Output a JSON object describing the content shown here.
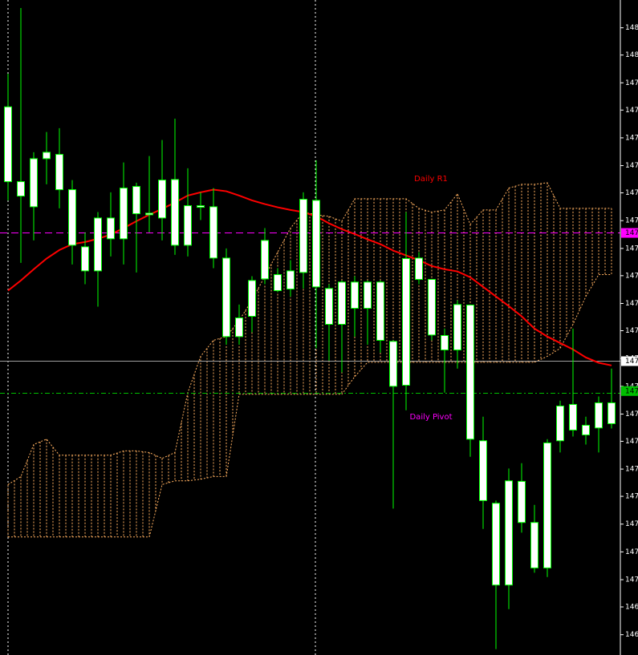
{
  "chart_data": {
    "type": "candlestick",
    "background": "#000000",
    "candle_color": "#ffffff",
    "wick_color": "#00ff00",
    "ylim": [
      146.894,
      148.12
    ],
    "yticks": [
      {
        "value": 148.068,
        "label": "148."
      },
      {
        "value": 148.017,
        "label": "148."
      },
      {
        "value": 147.965,
        "label": "147."
      },
      {
        "value": 147.914,
        "label": "147."
      },
      {
        "value": 147.862,
        "label": "147."
      },
      {
        "value": 147.81,
        "label": "147."
      },
      {
        "value": 147.759,
        "label": "147."
      },
      {
        "value": 147.707,
        "label": "147."
      },
      {
        "value": 147.655,
        "label": "147."
      },
      {
        "value": 147.604,
        "label": "147."
      },
      {
        "value": 147.552,
        "label": "147."
      },
      {
        "value": 147.501,
        "label": "147."
      },
      {
        "value": 147.449,
        "label": "147."
      },
      {
        "value": 147.397,
        "label": "147."
      },
      {
        "value": 147.345,
        "label": "147."
      },
      {
        "value": 147.294,
        "label": "147."
      },
      {
        "value": 147.242,
        "label": "147."
      },
      {
        "value": 147.191,
        "label": "147."
      },
      {
        "value": 147.139,
        "label": "147."
      },
      {
        "value": 147.087,
        "label": "147."
      },
      {
        "value": 147.035,
        "label": "147."
      },
      {
        "value": 146.984,
        "label": "146."
      },
      {
        "value": 146.932,
        "label": "146."
      }
    ],
    "open": [
      147.92,
      147.78,
      147.733,
      147.823,
      147.831,
      147.765,
      147.658,
      147.613,
      147.673,
      147.673,
      147.72,
      147.721,
      147.712,
      147.784,
      147.661,
      147.735,
      147.733,
      147.637,
      147.49,
      147.528,
      147.598,
      147.606,
      147.579,
      147.61,
      147.745,
      147.58,
      147.513,
      147.592,
      147.543,
      147.592,
      147.481,
      147.399,
      147.637,
      147.597,
      147.492,
      147.465,
      147.549,
      147.295,
      147.178,
      147.025,
      147.219,
      147.142,
      147.057,
      147.295,
      147.363,
      147.306,
      147.319,
      147.366
    ],
    "high": [
      147.982,
      148.105,
      147.835,
      147.873,
      147.88,
      147.783,
      147.685,
      147.723,
      147.76,
      147.816,
      147.778,
      147.828,
      147.858,
      147.898,
      147.805,
      147.76,
      147.768,
      147.655,
      147.55,
      147.603,
      147.693,
      147.618,
      147.633,
      147.76,
      147.82,
      147.588,
      147.595,
      147.603,
      147.595,
      147.595,
      147.483,
      147.723,
      147.648,
      147.598,
      147.505,
      147.558,
      147.55,
      147.34,
      147.183,
      147.243,
      147.253,
      147.175,
      147.298,
      147.37,
      147.505,
      147.34,
      147.378,
      147.43
    ],
    "low": [
      147.745,
      147.628,
      147.67,
      147.775,
      147.73,
      147.625,
      147.588,
      147.546,
      147.64,
      147.625,
      147.61,
      147.685,
      147.67,
      147.643,
      147.64,
      147.708,
      147.618,
      147.475,
      147.475,
      147.498,
      147.588,
      147.573,
      147.565,
      147.58,
      147.468,
      147.445,
      147.423,
      147.49,
      147.475,
      147.46,
      147.168,
      147.352,
      147.588,
      147.483,
      147.385,
      147.43,
      147.265,
      147.13,
      146.905,
      146.98,
      147.123,
      147.048,
      147.04,
      147.273,
      147.303,
      147.288,
      147.273,
      147.318
    ],
    "close": [
      147.78,
      147.753,
      147.823,
      147.835,
      147.765,
      147.661,
      147.613,
      147.712,
      147.712,
      147.768,
      147.771,
      147.718,
      147.783,
      147.661,
      147.735,
      147.732,
      147.637,
      147.49,
      147.525,
      147.595,
      147.67,
      147.576,
      147.613,
      147.747,
      147.583,
      147.513,
      147.592,
      147.543,
      147.592,
      147.483,
      147.397,
      147.636,
      147.597,
      147.493,
      147.465,
      147.55,
      147.298,
      147.183,
      147.025,
      147.22,
      147.142,
      147.057,
      147.291,
      147.36,
      147.315,
      147.324,
      147.366,
      147.327
    ],
    "lines": [
      {
        "color": "#ff0000",
        "values": [
          147.576,
          147.595,
          147.616,
          147.636,
          147.652,
          147.663,
          147.667,
          147.673,
          147.681,
          147.693,
          147.706,
          147.718,
          147.729,
          147.741,
          147.754,
          147.76,
          147.765,
          147.762,
          147.754,
          147.745,
          147.738,
          147.732,
          147.727,
          147.723,
          147.715,
          147.702,
          147.691,
          147.682,
          147.672,
          147.663,
          147.651,
          147.642,
          147.633,
          147.622,
          147.616,
          147.612,
          147.601,
          147.583,
          147.565,
          147.547,
          147.528,
          147.505,
          147.49,
          147.478,
          147.466,
          147.451,
          147.441,
          147.436
        ]
      }
    ],
    "cloud": {
      "color": "#ffb060",
      "span_a": [
        147.213,
        147.228,
        147.288,
        147.298,
        147.268,
        147.268,
        147.268,
        147.268,
        147.268,
        147.276,
        147.276,
        147.273,
        147.262,
        147.273,
        147.385,
        147.453,
        147.483,
        147.49,
        147.52,
        147.558,
        147.603,
        147.648,
        147.693,
        147.723,
        147.718,
        147.715,
        147.706,
        147.748,
        147.748,
        147.748,
        147.748,
        147.748,
        147.73,
        147.723,
        147.727,
        147.757,
        147.7,
        147.727,
        147.727,
        147.768,
        147.775,
        147.775,
        147.778,
        147.73,
        147.73,
        147.73,
        147.73,
        147.73
      ],
      "span_b": [
        147.115,
        147.115,
        147.115,
        147.115,
        147.115,
        147.115,
        147.115,
        147.115,
        147.115,
        147.115,
        147.115,
        147.115,
        147.213,
        147.22,
        147.22,
        147.223,
        147.228,
        147.228,
        147.382,
        147.382,
        147.382,
        147.382,
        147.382,
        147.382,
        147.382,
        147.382,
        147.382,
        147.415,
        147.442,
        147.442,
        147.442,
        147.442,
        147.442,
        147.442,
        147.442,
        147.442,
        147.442,
        147.442,
        147.442,
        147.442,
        147.442,
        147.442,
        147.453,
        147.468,
        147.513,
        147.565,
        147.606,
        147.606
      ]
    },
    "levels": [
      {
        "value": 147.684,
        "color": "#ff00ff",
        "style": "dashed"
      },
      {
        "value": 147.444,
        "color": "#a0a0a0",
        "style": "solid"
      },
      {
        "value": 147.384,
        "color": "#00c000",
        "style": "dashdot"
      }
    ],
    "price_labels": [
      {
        "value": 147.684,
        "label": "147.",
        "color": "#ff00ff"
      },
      {
        "value": 147.444,
        "label": "147.",
        "color": "#ffffff"
      },
      {
        "value": 147.388,
        "label": "147.",
        "color": "#00c000"
      }
    ],
    "annotations": [
      {
        "text": "Daily R1",
        "color": "#ff0000"
      },
      {
        "text": "Daily Pivot",
        "color": "#ff00ff"
      }
    ]
  }
}
